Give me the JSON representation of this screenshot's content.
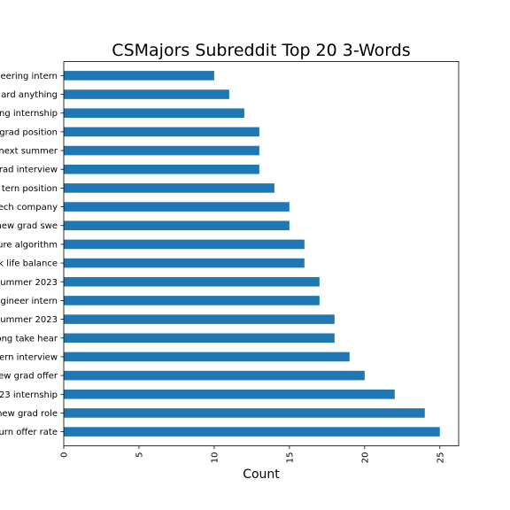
{
  "chart_data": {
    "type": "bar",
    "orientation": "horizontal",
    "title": "CSMajors Subreddit Top 20 3-Words",
    "xlabel": "Count",
    "ylabel": "",
    "xlim": [
      0,
      26.25
    ],
    "xticks": [
      0,
      5,
      10,
      15,
      20,
      25
    ],
    "grid": false,
    "legend": "none",
    "bar_color": "#1f77b4",
    "categories": [
      "urn offer rate",
      "new grad role",
      "23 internship",
      "ew grad offer",
      "ern interview",
      "ong take hear",
      "ummer 2023",
      "gineer intern",
      "ummer 2023",
      "k life balance",
      "ure algorithm",
      "new grad swe",
      "ech company",
      "tern position",
      "rad interview",
      "next summer",
      "grad position",
      "ng internship",
      "ard anything",
      "eering intern"
    ],
    "values": [
      25,
      24,
      22,
      20,
      19,
      18,
      18,
      17,
      17,
      16,
      16,
      15,
      15,
      14,
      13,
      13,
      13,
      12,
      11,
      10
    ]
  }
}
